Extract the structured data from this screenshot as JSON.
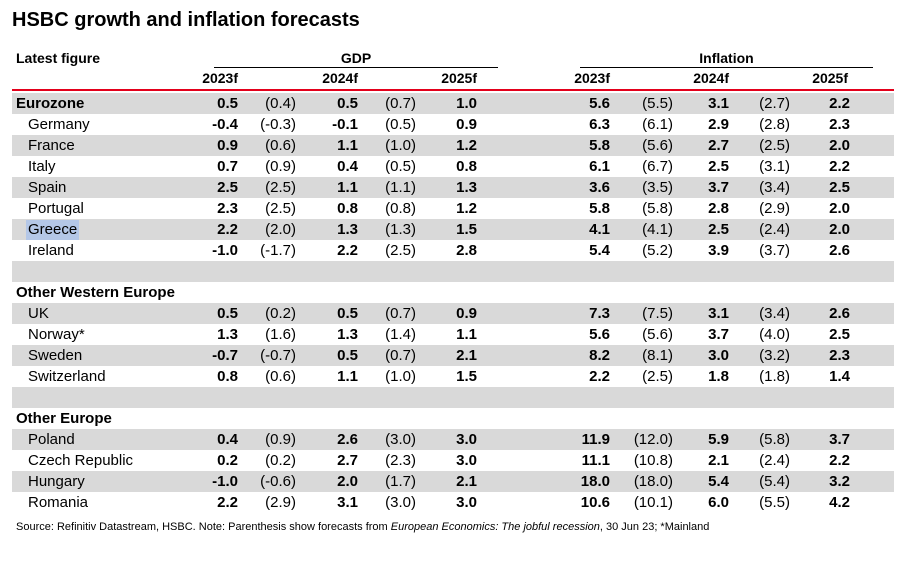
{
  "title": "HSBC growth and inflation forecasts",
  "header": {
    "latest_label": "Latest figure",
    "gdp_label": "GDP",
    "inflation_label": "Inflation",
    "years": [
      "2023f",
      "2024f",
      "2025f"
    ]
  },
  "table": {
    "rows": [
      {
        "label": "Eurozone",
        "kind": "header",
        "values": [
          "0.5",
          "(0.4)",
          "0.5",
          "(0.7)",
          "1.0",
          "5.6",
          "(5.5)",
          "3.1",
          "(2.7)",
          "2.2"
        ]
      },
      {
        "label": "Germany",
        "kind": "country",
        "values": [
          "-0.4",
          "(-0.3)",
          "-0.1",
          "(0.5)",
          "0.9",
          "6.3",
          "(6.1)",
          "2.9",
          "(2.8)",
          "2.3"
        ]
      },
      {
        "label": "France",
        "kind": "country",
        "values": [
          "0.9",
          "(0.6)",
          "1.1",
          "(1.0)",
          "1.2",
          "5.8",
          "(5.6)",
          "2.7",
          "(2.5)",
          "2.0"
        ]
      },
      {
        "label": "Italy",
        "kind": "country",
        "values": [
          "0.7",
          "(0.9)",
          "0.4",
          "(0.5)",
          "0.8",
          "6.1",
          "(6.7)",
          "2.5",
          "(3.1)",
          "2.2"
        ]
      },
      {
        "label": "Spain",
        "kind": "country",
        "values": [
          "2.5",
          "(2.5)",
          "1.1",
          "(1.1)",
          "1.3",
          "3.6",
          "(3.5)",
          "3.7",
          "(3.4)",
          "2.5"
        ]
      },
      {
        "label": "Portugal",
        "kind": "country",
        "values": [
          "2.3",
          "(2.5)",
          "0.8",
          "(0.8)",
          "1.2",
          "5.8",
          "(5.8)",
          "2.8",
          "(2.9)",
          "2.0"
        ]
      },
      {
        "label": "Greece",
        "kind": "country",
        "selected": true,
        "values": [
          "2.2",
          "(2.0)",
          "1.3",
          "(1.3)",
          "1.5",
          "4.1",
          "(4.1)",
          "2.5",
          "(2.4)",
          "2.0"
        ]
      },
      {
        "label": "Ireland",
        "kind": "country",
        "values": [
          "-1.0",
          "(-1.7)",
          "2.2",
          "(2.5)",
          "2.8",
          "5.4",
          "(5.2)",
          "3.9",
          "(3.7)",
          "2.6"
        ]
      },
      {
        "label": "",
        "kind": "blank",
        "values": []
      },
      {
        "label": "Other Western Europe",
        "kind": "header",
        "values": []
      },
      {
        "label": "UK",
        "kind": "country",
        "values": [
          "0.5",
          "(0.2)",
          "0.5",
          "(0.7)",
          "0.9",
          "7.3",
          "(7.5)",
          "3.1",
          "(3.4)",
          "2.6"
        ]
      },
      {
        "label": "Norway*",
        "kind": "country",
        "values": [
          "1.3",
          "(1.6)",
          "1.3",
          "(1.4)",
          "1.1",
          "5.6",
          "(5.6)",
          "3.7",
          "(4.0)",
          "2.5"
        ]
      },
      {
        "label": "Sweden",
        "kind": "country",
        "values": [
          "-0.7",
          "(-0.7)",
          "0.5",
          "(0.7)",
          "2.1",
          "8.2",
          "(8.1)",
          "3.0",
          "(3.2)",
          "2.3"
        ]
      },
      {
        "label": "Switzerland",
        "kind": "country",
        "values": [
          "0.8",
          "(0.6)",
          "1.1",
          "(1.0)",
          "1.5",
          "2.2",
          "(2.5)",
          "1.8",
          "(1.8)",
          "1.4"
        ]
      },
      {
        "label": "",
        "kind": "blank",
        "values": []
      },
      {
        "label": "Other Europe",
        "kind": "header",
        "values": []
      },
      {
        "label": "Poland",
        "kind": "country",
        "values": [
          "0.4",
          "(0.9)",
          "2.6",
          "(3.0)",
          "3.0",
          "11.9",
          "(12.0)",
          "5.9",
          "(5.8)",
          "3.7"
        ]
      },
      {
        "label": "Czech Republic",
        "kind": "country",
        "values": [
          "0.2",
          "(0.2)",
          "2.7",
          "(2.3)",
          "3.0",
          "11.1",
          "(10.8)",
          "2.1",
          "(2.4)",
          "2.2"
        ]
      },
      {
        "label": "Hungary",
        "kind": "country",
        "values": [
          "-1.0",
          "(-0.6)",
          "2.0",
          "(1.7)",
          "2.1",
          "18.0",
          "(18.0)",
          "5.4",
          "(5.4)",
          "3.2"
        ]
      },
      {
        "label": "Romania",
        "kind": "country",
        "values": [
          "2.2",
          "(2.9)",
          "3.1",
          "(3.0)",
          "3.0",
          "10.6",
          "(10.1)",
          "6.0",
          "(5.5)",
          "4.2"
        ]
      }
    ]
  },
  "source": {
    "prefix": "Source: Refinitiv Datastream, HSBC. Note: Parenthesis show forecasts from ",
    "publication": "European Economics: The jobful recession",
    "suffix": ", 30 Jun 23; *Mainland"
  }
}
